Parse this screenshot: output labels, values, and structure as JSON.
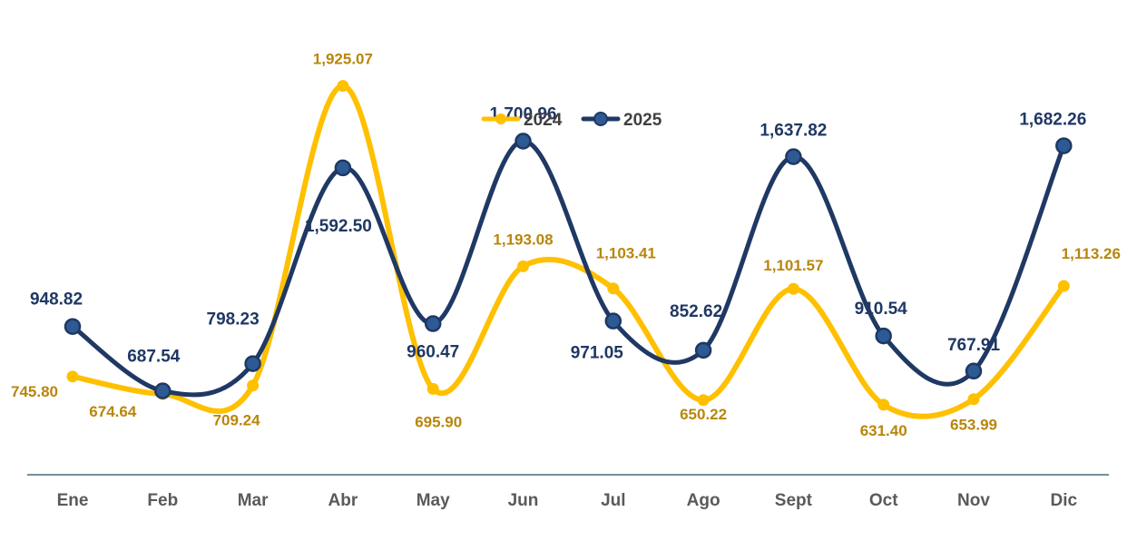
{
  "chart_data": {
    "type": "line",
    "categories": [
      "Ene",
      "Feb",
      "Mar",
      "Abr",
      "May",
      "Jun",
      "Jul",
      "Ago",
      "Sept",
      "Oct",
      "Nov",
      "Dic"
    ],
    "series": [
      {
        "name": "2024",
        "color": "#FFC000",
        "label_color": "#B8860B",
        "values": [
          745.8,
          674.64,
          709.24,
          1925.07,
          695.9,
          1193.08,
          1103.41,
          650.22,
          1101.57,
          631.4,
          653.99,
          1113.26
        ],
        "labels": [
          "745.80",
          "674.64",
          "709.24",
          "1,925.07",
          "695.90",
          "1,193.08",
          "1,103.41",
          "650.22",
          "1,101.57",
          "631.40",
          "653.99",
          "1,113.26"
        ]
      },
      {
        "name": "2025",
        "color": "#1F3864",
        "marker_fill": "#2E5A94",
        "label_color": "#1F3864",
        "values": [
          948.82,
          687.54,
          798.23,
          1592.5,
          960.47,
          1700.96,
          971.05,
          852.62,
          1637.82,
          910.54,
          767.91,
          1682.26
        ],
        "labels": [
          "948.82",
          "687.54",
          "798.23",
          "1,592.50",
          "960.47",
          "1,700.96",
          "971.05",
          "852.62",
          "1,637.82",
          "910.54",
          "767.91",
          "1,682.26"
        ]
      }
    ],
    "xlabel": "",
    "ylabel": "",
    "ylim": [
      200,
      2200
    ],
    "grid": false,
    "legend_position": "top-center",
    "smooth": true,
    "axis_color": "#1F4E5A"
  }
}
